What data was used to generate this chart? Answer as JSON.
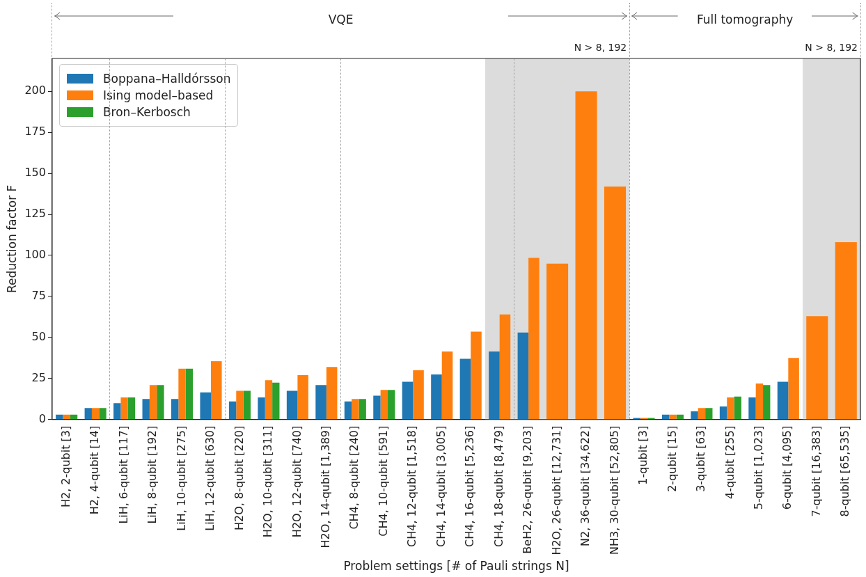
{
  "chart_data": {
    "type": "bar",
    "xlabel": "Problem settings [# of Pauli strings N]",
    "ylabel": "Reduction factor F",
    "categories": [
      "H2, 2-qubit [3]",
      "H2, 4-qubit [14]",
      "LiH, 6-qubit [117]",
      "LiH, 8-qubit [192]",
      "LiH, 10-qubit [275]",
      "LiH, 12-qubit [630]",
      "H2O, 8-qubit [220]",
      "H2O, 10-qubit [311]",
      "H2O, 12-qubit [740]",
      "H2O, 14-qubit [1,389]",
      "CH4, 8-qubit [240]",
      "CH4, 10-qubit [591]",
      "CH4, 12-qubit [1,518]",
      "CH4, 14-qubit [3,005]",
      "CH4, 16-qubit [5,236]",
      "CH4, 18-qubit [8,479]",
      "BeH2, 26-qubit [9,203]",
      "H2O, 26-qubit [12,731]",
      "N2, 36-qubit [34,622]",
      "NH3, 30-qubit [52,805]",
      "1-qubit [3]",
      "2-qubit [15]",
      "3-qubit [63]",
      "4-qubit [255]",
      "5-qubit [1,023]",
      "6-qubit [4,095]",
      "7-qubit [16,383]",
      "8-qubit [65,535]"
    ],
    "series": [
      {
        "name": "Boppana–Halldórsson",
        "color": "#1f77b4",
        "values": [
          3,
          7,
          10,
          12.5,
          12.5,
          16.5,
          11,
          13.5,
          17.5,
          21,
          11,
          14.5,
          23,
          27.5,
          37,
          41.5,
          53,
          null,
          null,
          null,
          1,
          3,
          5,
          8,
          13.5,
          23,
          null,
          null
        ]
      },
      {
        "name": "Ising model–based",
        "color": "#ff7f0e",
        "values": [
          3,
          7,
          13.5,
          21,
          31,
          35.5,
          17.5,
          24,
          27,
          32,
          12.5,
          18,
          30,
          41.5,
          53.5,
          64,
          98.5,
          95,
          200,
          142,
          1,
          3,
          7,
          13.5,
          22,
          37.5,
          63,
          108
        ]
      },
      {
        "name": "Bron–Kerbosch",
        "color": "#2ca02c",
        "values": [
          3,
          7,
          13.5,
          21,
          31,
          null,
          17.5,
          22.5,
          null,
          null,
          12.5,
          18,
          null,
          null,
          null,
          null,
          null,
          null,
          null,
          null,
          1,
          3,
          7,
          14,
          21,
          null,
          null,
          null
        ]
      }
    ],
    "ylim": [
      0,
      220
    ],
    "yticks": [
      0,
      25,
      50,
      75,
      100,
      125,
      150,
      175,
      200
    ],
    "grid": false,
    "legend": "top left",
    "bands": [
      {
        "axis": "x",
        "from": "CH4, 18-qubit [8,479]",
        "to": "NH3, 30-qubit [52,805]",
        "label": "N > 8, 192",
        "color": "#dcdcdc"
      },
      {
        "axis": "x",
        "from": "7-qubit [16,383]",
        "to": "8-qubit [65,535]",
        "label": "N > 8, 192",
        "color": "#dcdcdc"
      }
    ],
    "annotations": [
      "VQE",
      "Full tomography"
    ]
  }
}
